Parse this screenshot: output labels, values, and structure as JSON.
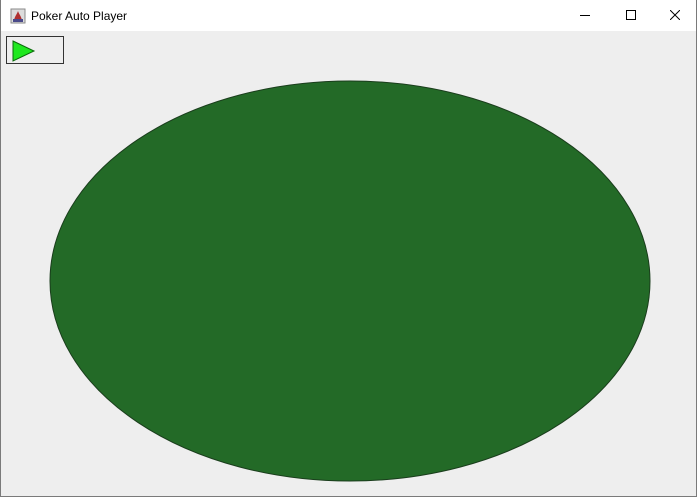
{
  "window": {
    "title": "Poker Auto Player",
    "controls": {
      "minimize_icon": "minimize-icon",
      "maximize_icon": "maximize-icon",
      "close_icon": "close-icon"
    }
  },
  "toolbar": {
    "play_icon": "play-icon"
  },
  "colors": {
    "table_felt": "#236a27",
    "table_border": "#1a3d1c",
    "play_fill": "#1fe81f",
    "background": "#eeeeee"
  }
}
